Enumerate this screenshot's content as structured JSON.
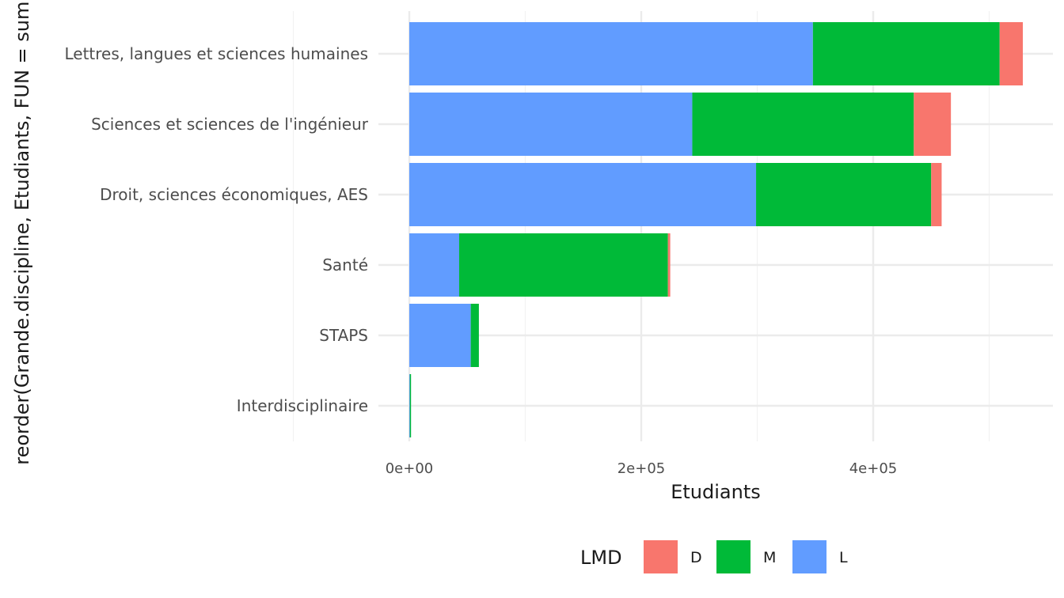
{
  "chart_data": {
    "type": "bar",
    "orientation": "horizontal",
    "stacked": true,
    "categories": [
      "Lettres, langues et sciences humaines",
      "Sciences et sciences de l'ingénieur",
      "Droit, sciences économiques, AES",
      "Santé",
      "STAPS",
      "Interdisciplinaire"
    ],
    "series": [
      {
        "name": "L",
        "color": "#619CFF",
        "values": [
          348000,
          244000,
          299000,
          43000,
          53000,
          500
        ]
      },
      {
        "name": "M",
        "color": "#00BA38",
        "values": [
          161000,
          191000,
          151000,
          180000,
          7000,
          1000
        ]
      },
      {
        "name": "D",
        "color": "#F8766D",
        "values": [
          20000,
          32000,
          9000,
          2000,
          0,
          0
        ]
      }
    ],
    "xlabel": "Etudiants",
    "ylabel": "reorder(Grande.discipline, Etudiants, FUN = sum)",
    "xticks": [
      0,
      200000,
      400000
    ],
    "xtick_labels": [
      "0e+00",
      "2e+05",
      "4e+05"
    ],
    "xlim": [
      -30000,
      553000
    ],
    "grid": true,
    "legend": {
      "title": "LMD",
      "position": "bottom",
      "entries": [
        {
          "label": "D",
          "color": "#F8766D"
        },
        {
          "label": "M",
          "color": "#00BA38"
        },
        {
          "label": "L",
          "color": "#619CFF"
        }
      ]
    }
  }
}
